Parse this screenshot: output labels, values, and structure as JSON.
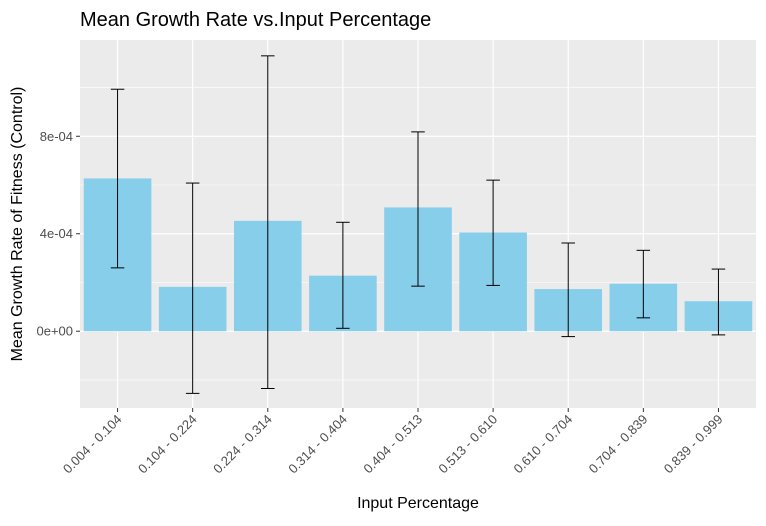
{
  "colors": {
    "panel_background": "#EBEBEB",
    "grid_major": "#FFFFFF",
    "bar_fill": "#87CEEB",
    "error_bar": "#000000",
    "tick_text": "#4D4D4D"
  },
  "chart_data": {
    "type": "bar",
    "title": "Mean Growth Rate vs.Input Percentage",
    "xlabel": "Input Percentage",
    "ylabel": "Mean Growth Rate of Fitness (Control)",
    "categories": [
      "0.004 - 0.104",
      "0.104 - 0.224",
      "0.224 - 0.314",
      "0.314 - 0.404",
      "0.404 - 0.513",
      "0.513 - 0.610",
      "0.610 - 0.704",
      "0.704 - 0.839",
      "0.839 - 0.999"
    ],
    "values": [
      0.000627,
      0.000182,
      0.000453,
      0.000228,
      0.000508,
      0.000405,
      0.000173,
      0.000195,
      0.000123
    ],
    "error_low": [
      0.00026,
      -0.000255,
      -0.000235,
      1.2e-05,
      0.000185,
      0.000188,
      -2.2e-05,
      5.5e-05,
      -1.5e-05
    ],
    "error_high": [
      0.000993,
      0.000608,
      0.00113,
      0.000447,
      0.000818,
      0.00062,
      0.000362,
      0.000332,
      0.000255
    ],
    "yticks": [
      0,
      0.0004,
      0.0008
    ],
    "ytick_labels": [
      "0e+00",
      "4e-04",
      "8e-04"
    ],
    "ylim": [
      -0.000315,
      0.001195
    ],
    "grid": true,
    "legend": "none"
  }
}
